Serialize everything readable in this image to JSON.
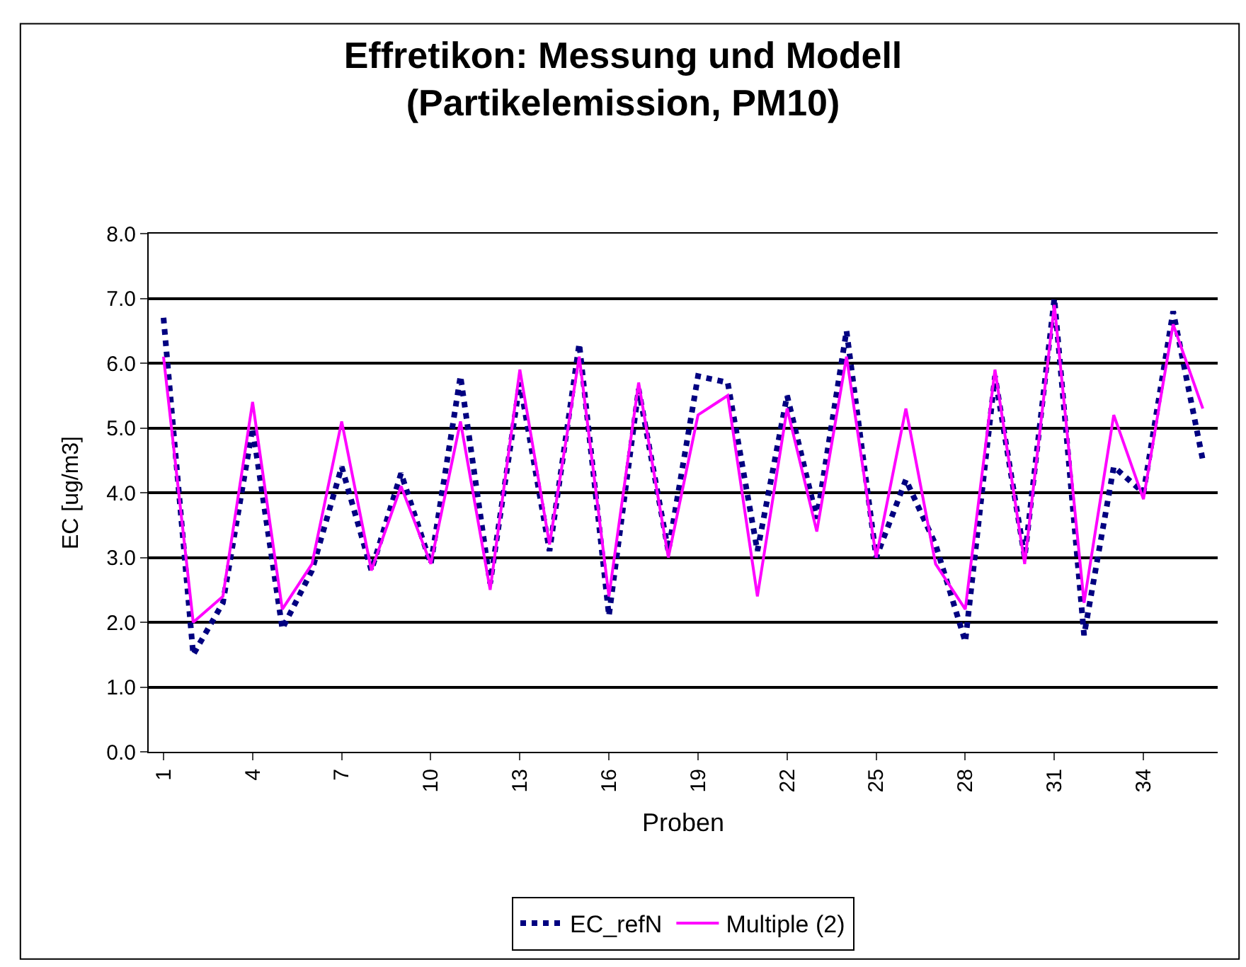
{
  "chart_data": {
    "type": "line",
    "title": "Effretikon: Messung und Modell\n(Partikelemission, PM10)",
    "xlabel": "Proben",
    "ylabel": "EC [ug/m3]",
    "categories": [
      "1",
      null,
      null,
      "4",
      null,
      null,
      "7",
      null,
      null,
      "10",
      null,
      null,
      "13",
      null,
      null,
      "16",
      null,
      null,
      "19",
      null,
      null,
      "22",
      null,
      null,
      "25",
      null,
      null,
      "28",
      null,
      null,
      "31",
      null,
      null,
      "34",
      null,
      null
    ],
    "series": [
      {
        "name": "EC_refN",
        "color": "#000080",
        "line_style": "dotted",
        "values": [
          6.7,
          1.5,
          2.3,
          5.0,
          1.9,
          2.8,
          4.4,
          2.8,
          4.3,
          2.9,
          5.8,
          2.6,
          5.7,
          3.1,
          6.3,
          2.1,
          5.6,
          3.1,
          5.8,
          5.7,
          3.1,
          5.5,
          3.6,
          6.5,
          3.0,
          4.2,
          3.2,
          1.7,
          5.8,
          3.0,
          7.0,
          1.8,
          4.4,
          4.0,
          6.8,
          4.5
        ]
      },
      {
        "name": "Multiple (2)",
        "color": "#ff00ff",
        "line_style": "solid",
        "values": [
          6.1,
          2.0,
          2.4,
          5.4,
          2.2,
          2.9,
          5.1,
          2.8,
          4.1,
          2.9,
          5.1,
          2.5,
          5.9,
          3.2,
          6.1,
          2.4,
          5.7,
          3.0,
          5.2,
          5.5,
          2.4,
          5.3,
          3.4,
          6.1,
          3.0,
          5.3,
          2.9,
          2.2,
          5.9,
          2.9,
          6.9,
          2.3,
          5.2,
          3.9,
          6.6,
          5.3
        ]
      }
    ],
    "ylim": [
      0,
      8
    ],
    "yticks": [
      {
        "value": 0,
        "label": "0.0"
      },
      {
        "value": 1,
        "label": "1.0"
      },
      {
        "value": 2,
        "label": "2.0"
      },
      {
        "value": 3,
        "label": "3.0"
      },
      {
        "value": 4,
        "label": "4.0"
      },
      {
        "value": 5,
        "label": "5.0"
      },
      {
        "value": 6,
        "label": "6.0"
      },
      {
        "value": 7,
        "label": "7.0"
      },
      {
        "value": 8,
        "label": "8.0"
      }
    ],
    "grid": "y",
    "legend": "bottom",
    "marker": "none"
  }
}
